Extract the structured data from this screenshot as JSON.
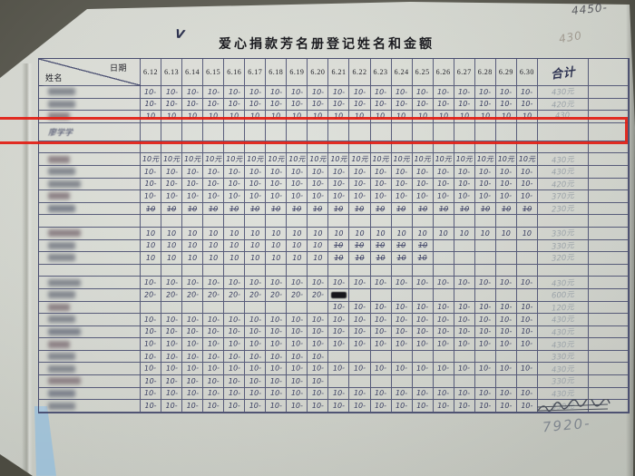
{
  "photo": {
    "annotations": {
      "checkmark": "V",
      "top_right_note": "4450-",
      "title_right_faint": "430",
      "bottom_right_total": "7920-"
    },
    "colors": {
      "paper": "#d6d9d1",
      "background": "#55544a",
      "grid_line": "#383d64",
      "ink": "#383d60",
      "pencil": "#9aa2a8",
      "highlight_red": "#e21c12",
      "blue_strip": "#a9c6dc"
    }
  },
  "document": {
    "title": "爱心捐款芳名册登记姓名和金额",
    "header": {
      "name_label": "姓名",
      "date_label": "日期",
      "dates": [
        "6.12",
        "6.13",
        "6.14",
        "6.15",
        "6.16",
        "6.17",
        "6.18",
        "6.19",
        "6.20",
        "6.21",
        "6.22",
        "6.23",
        "6.24",
        "6.25",
        "6.26",
        "6.27",
        "6.28",
        "6.29",
        "6.30"
      ],
      "total_label": "合计"
    },
    "highlighted_name": "廖学学",
    "rows": [
      {
        "name": "",
        "blurred": true,
        "cells": [
          "10-",
          "10-",
          "10-",
          "10-",
          "10-",
          "10-",
          "10-",
          "10-",
          "10-",
          "10-",
          "10-",
          "10-",
          "10-",
          "10-",
          "10-",
          "10-",
          "10-",
          "10-",
          "10-"
        ],
        "total": "430元"
      },
      {
        "name": "",
        "blurred": true,
        "cells": [
          "10-",
          "10-",
          "10-",
          "10-",
          "10-",
          "10-",
          "10-",
          "10-",
          "10-",
          "10-",
          "10-",
          "10-",
          "10-",
          "10-",
          "10-",
          "10-",
          "10-",
          "10-",
          "10-"
        ],
        "total": "420元"
      },
      {
        "name": "",
        "blurred": true,
        "cells": [
          "10",
          "10",
          "10",
          "10",
          "10",
          "10",
          "10",
          "10",
          "10",
          "10",
          "10",
          "10",
          "10",
          "10",
          "10",
          "10",
          "10",
          "10",
          "10"
        ],
        "total": "430"
      },
      {
        "name": "廖学学",
        "blurred": false,
        "highlight": true,
        "cells": [
          "",
          "",
          "",
          "",
          "",
          "",
          "",
          "",
          "",
          "",
          "",
          "",
          "",
          "",
          "",
          "",
          "",
          "",
          ""
        ],
        "total": ""
      },
      {
        "name": "",
        "blurred": false,
        "cells": [
          "",
          "",
          "",
          "",
          "",
          "",
          "",
          "",
          "",
          "",
          "",
          "",
          "",
          "",
          "",
          "",
          "",
          "",
          ""
        ],
        "total": ""
      },
      {
        "name": "",
        "blurred": true,
        "cells": [
          "10元",
          "10元",
          "10元",
          "10元",
          "10元",
          "10元",
          "10元",
          "10元",
          "10元",
          "10元",
          "10元",
          "10元",
          "10元",
          "10元",
          "10元",
          "10元",
          "10元",
          "10元",
          "10元"
        ],
        "total": "430元"
      },
      {
        "name": "",
        "blurred": true,
        "cells": [
          "10-",
          "10-",
          "10-",
          "10-",
          "10-",
          "10-",
          "10-",
          "10-",
          "10-",
          "10-",
          "10-",
          "10-",
          "10-",
          "10-",
          "10-",
          "10-",
          "10-",
          "10-",
          "10-"
        ],
        "total": "430元"
      },
      {
        "name": "",
        "blurred": true,
        "cells": [
          "10-",
          "10-",
          "10-",
          "10-",
          "10-",
          "10-",
          "10-",
          "10-",
          "10-",
          "10-",
          "10-",
          "10-",
          "10-",
          "10-",
          "10-",
          "10-",
          "10-",
          "10-",
          "10-"
        ],
        "total": "420元"
      },
      {
        "name": "",
        "blurred": true,
        "cells": [
          "10-",
          "10-",
          "10-",
          "10-",
          "10-",
          "10-",
          "10-",
          "10-",
          "10-",
          "10-",
          "10-",
          "10-",
          "10-",
          "10-",
          "10-",
          "10-",
          "10-",
          "10-",
          "10-"
        ],
        "total": "370元"
      },
      {
        "name": "",
        "blurred": true,
        "cells": [
          "~10",
          "~10",
          "~10",
          "~10",
          "~10",
          "~10",
          "~10",
          "~10",
          "~10",
          "~10",
          "~10",
          "~10",
          "~10",
          "~10",
          "~10",
          "~10",
          "~10",
          "~10",
          "~10"
        ],
        "total": "230元"
      },
      {
        "name": "",
        "blurred": false,
        "cells": [
          "",
          "",
          "",
          "",
          "",
          "",
          "",
          "",
          "",
          "",
          "",
          "",
          "",
          "",
          "",
          "",
          "",
          "",
          ""
        ],
        "total": ""
      },
      {
        "name": "",
        "blurred": true,
        "cells": [
          "10",
          "10",
          "10",
          "10",
          "10",
          "10",
          "10",
          "10",
          "10",
          "10",
          "10",
          "10",
          "10",
          "10",
          "10",
          "10",
          "10",
          "10",
          "10"
        ],
        "total": "330元"
      },
      {
        "name": "",
        "blurred": true,
        "cells": [
          "10",
          "10",
          "10",
          "10",
          "10",
          "10",
          "10",
          "10",
          "10",
          "~10",
          "~10",
          "~10",
          "~10",
          "~10",
          "",
          "",
          "",
          "",
          ""
        ],
        "total": "330元"
      },
      {
        "name": "",
        "blurred": true,
        "cells": [
          "10",
          "10",
          "10",
          "10",
          "10",
          "10",
          "10",
          "10",
          "10",
          "~10",
          "~10",
          "~10",
          "~10",
          "~10",
          "",
          "",
          "",
          "",
          ""
        ],
        "total": "320元"
      },
      {
        "name": "",
        "blurred": false,
        "cells": [
          "",
          "",
          "",
          "",
          "",
          "",
          "",
          "",
          "",
          "",
          "",
          "",
          "",
          "",
          "",
          "",
          "",
          "",
          ""
        ],
        "total": ""
      },
      {
        "name": "",
        "blurred": true,
        "cells": [
          "10-",
          "10-",
          "10-",
          "10-",
          "10-",
          "10-",
          "10-",
          "10-",
          "10-",
          "10-",
          "10-",
          "10-",
          "10-",
          "10-",
          "10-",
          "10-",
          "10-",
          "10-",
          "10-"
        ],
        "total": "430元"
      },
      {
        "name": "",
        "blurred": true,
        "cells": [
          "20-",
          "20-",
          "20-",
          "20-",
          "20-",
          "20-",
          "20-",
          "20-",
          "20-",
          "█",
          "",
          "",
          "",
          "",
          "",
          "",
          "",
          "",
          ""
        ],
        "total": "600元"
      },
      {
        "name": "",
        "blurred": true,
        "cells": [
          "",
          "",
          "",
          "",
          "",
          "",
          "",
          "",
          "",
          "10-",
          "10-",
          "10-",
          "10-",
          "10-",
          "10-",
          "10-",
          "10-",
          "10-",
          "10-"
        ],
        "total": "120元"
      },
      {
        "name": "",
        "blurred": true,
        "cells": [
          "10-",
          "10-",
          "10-",
          "10-",
          "10-",
          "10-",
          "10-",
          "10-",
          "10-",
          "10-",
          "10-",
          "10-",
          "10-",
          "10-",
          "10-",
          "10-",
          "10-",
          "10-",
          "10-"
        ],
        "total": "430元"
      },
      {
        "name": "",
        "blurred": true,
        "cells": [
          "10-",
          "10-",
          "10-",
          "10-",
          "10-",
          "10-",
          "10-",
          "10-",
          "10-",
          "10-",
          "10-",
          "10-",
          "10-",
          "10-",
          "10-",
          "10-",
          "10-",
          "10-",
          "10-"
        ],
        "total": "430元"
      },
      {
        "name": "",
        "blurred": true,
        "cells": [
          "10-",
          "10-",
          "10-",
          "10-",
          "10-",
          "10-",
          "10-",
          "10-",
          "10-",
          "10-",
          "10-",
          "10-",
          "10-",
          "10-",
          "10-",
          "10-",
          "10-",
          "10-",
          "10-"
        ],
        "total": "430元"
      },
      {
        "name": "",
        "blurred": true,
        "cells": [
          "10-",
          "10-",
          "10-",
          "10-",
          "10-",
          "10-",
          "10-",
          "10-",
          "10-",
          "",
          "",
          "",
          "",
          "",
          "",
          "",
          "",
          "",
          ""
        ],
        "total": "330元"
      },
      {
        "name": "",
        "blurred": true,
        "cells": [
          "10-",
          "10-",
          "10-",
          "10-",
          "10-",
          "10-",
          "10-",
          "10-",
          "10-",
          "10-",
          "10-",
          "10-",
          "10-",
          "10-",
          "10-",
          "10-",
          "10-",
          "10-",
          "10-"
        ],
        "total": "430元"
      },
      {
        "name": "",
        "blurred": true,
        "cells": [
          "10-",
          "10-",
          "10-",
          "10-",
          "10-",
          "10-",
          "10-",
          "10-",
          "10-",
          "",
          "",
          "",
          "",
          "",
          "",
          "",
          "",
          "",
          ""
        ],
        "total": "330元"
      },
      {
        "name": "",
        "blurred": true,
        "cells": [
          "10-",
          "10-",
          "10-",
          "10-",
          "10-",
          "10-",
          "10-",
          "10-",
          "10-",
          "10-",
          "10-",
          "10-",
          "10-",
          "10-",
          "10-",
          "10-",
          "10-",
          "10-",
          "10-"
        ],
        "total": "430元"
      },
      {
        "name": "",
        "blurred": true,
        "cells": [
          "10-",
          "10-",
          "10-",
          "10-",
          "10-",
          "10-",
          "10-",
          "10-",
          "10-",
          "10-",
          "10-",
          "10-",
          "10-",
          "10-",
          "10-",
          "10-",
          "10-",
          "10-",
          "10-"
        ],
        "total": "330元"
      }
    ]
  }
}
